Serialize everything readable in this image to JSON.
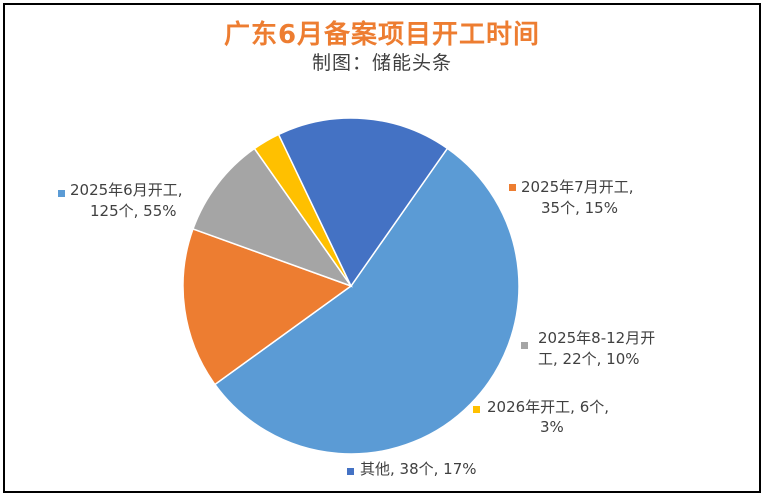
{
  "title": "广东6月备案项目开工时间",
  "subtitle": "制图：储能头条",
  "chart_data": {
    "type": "pie",
    "title": "广东6月备案项目开工时间",
    "subtitle": "制图：储能头条",
    "categories": [
      "2025年6月开工",
      "2025年7月开工",
      "2025年8-12月开工",
      "2026年开工",
      "其他"
    ],
    "values": [
      125,
      35,
      22,
      6,
      38
    ],
    "percentages": [
      55,
      15,
      10,
      3,
      17
    ],
    "colors": [
      "#5B9BD5",
      "#ED7D31",
      "#A5A5A5",
      "#FFC000",
      "#4472C4"
    ],
    "data_labels": [
      [
        "2025年6月开工,",
        "125个, 55%"
      ],
      [
        "2025年7月开工,",
        "35个, 15%"
      ],
      [
        "2025年8-12月开",
        "工, 22个, 10%"
      ],
      [
        "2026年开工, 6个,",
        "3%"
      ],
      [
        "其他, 38个, 17%"
      ]
    ],
    "legend": "none"
  }
}
